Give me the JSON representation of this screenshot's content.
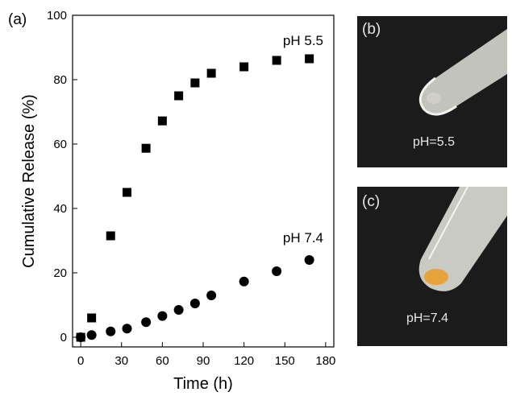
{
  "panels": {
    "a_label": "(a)",
    "b_label": "(b)",
    "c_label": "(c)"
  },
  "photos": {
    "b_caption": "pH=5.5",
    "c_caption": "pH=7.4",
    "background_color": "#1b1b1b",
    "tube_color": "#d9d9d4",
    "pellet_b_color": "#cfcfc8",
    "pellet_c_color": "#e8a23a"
  },
  "chart_data": {
    "type": "scatter",
    "title": "",
    "xlabel": "Time (h)",
    "ylabel": "Cumulative Release (%)",
    "xlim": [
      -6,
      186
    ],
    "ylim": [
      -3,
      100
    ],
    "xticks": [
      0,
      30,
      60,
      90,
      120,
      150,
      180
    ],
    "yticks": [
      0,
      20,
      40,
      60,
      80,
      100
    ],
    "grid": false,
    "legend": "none",
    "series": [
      {
        "name": "pH 5.5",
        "marker": "square",
        "color": "#000000",
        "x": [
          0,
          8,
          22,
          34,
          48,
          60,
          72,
          84,
          96,
          120,
          144,
          168
        ],
        "y": [
          0,
          6,
          31.5,
          45,
          58.7,
          67.2,
          75,
          79,
          82,
          84,
          86,
          86.5
        ]
      },
      {
        "name": "pH 7.4",
        "marker": "circle",
        "color": "#000000",
        "x": [
          0,
          8,
          22,
          34,
          48,
          60,
          72,
          84,
          96,
          120,
          144,
          168
        ],
        "y": [
          0,
          0.7,
          1.8,
          2.7,
          4.7,
          6.6,
          8.5,
          10.5,
          13,
          17.3,
          20.5,
          24
        ]
      }
    ],
    "annotations": [
      "pH 5.5",
      "pH 7.4"
    ]
  }
}
